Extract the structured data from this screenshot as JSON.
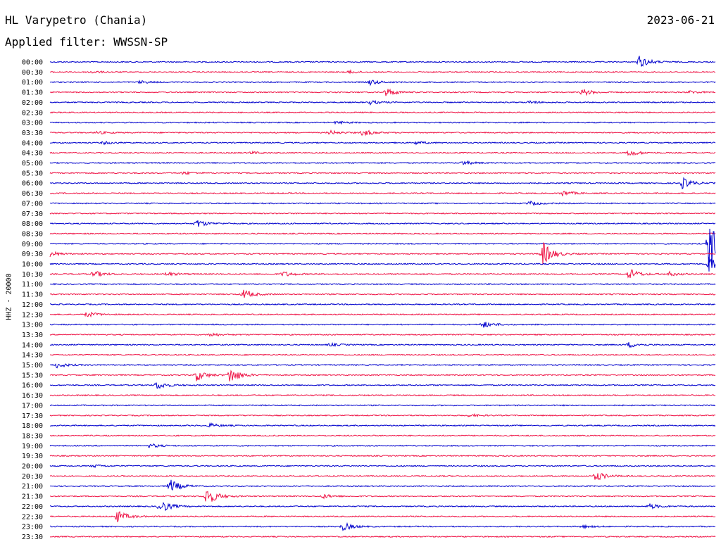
{
  "header": {
    "station": "HL Varypetro (Chania)",
    "date": "2023-06-21",
    "filter": "Applied filter: WWSSN-SP"
  },
  "chart_data": {
    "type": "line",
    "title": "HL Varypetro (Chania)",
    "subtitle": "Applied filter: WWSSN-SP",
    "ylabel": "HHZ - 20000",
    "colors": [
      "#0000cc",
      "#ee1144"
    ],
    "rows": [
      {
        "label": "00:00",
        "events": [
          [
            0.885,
            9
          ]
        ]
      },
      {
        "label": "00:30",
        "events": [
          [
            0.06,
            2
          ],
          [
            0.45,
            2
          ]
        ]
      },
      {
        "label": "01:00",
        "events": [
          [
            0.135,
            2
          ],
          [
            0.48,
            4
          ]
        ]
      },
      {
        "label": "01:30",
        "events": [
          [
            0.505,
            6
          ],
          [
            0.8,
            5
          ],
          [
            0.96,
            2
          ]
        ]
      },
      {
        "label": "02:00",
        "events": [
          [
            0.48,
            3
          ],
          [
            0.72,
            2
          ]
        ]
      },
      {
        "label": "02:30",
        "events": []
      },
      {
        "label": "03:00",
        "events": [
          [
            0.43,
            2
          ]
        ]
      },
      {
        "label": "03:30",
        "events": [
          [
            0.07,
            2
          ],
          [
            0.42,
            3
          ],
          [
            0.47,
            5
          ]
        ]
      },
      {
        "label": "04:00",
        "events": [
          [
            0.08,
            2
          ],
          [
            0.55,
            2
          ]
        ]
      },
      {
        "label": "04:30",
        "events": [
          [
            0.3,
            2
          ],
          [
            0.87,
            5
          ]
        ]
      },
      {
        "label": "05:00",
        "events": [
          [
            0.62,
            3
          ]
        ]
      },
      {
        "label": "05:30",
        "events": [
          [
            0.2,
            2
          ]
        ]
      },
      {
        "label": "06:00",
        "events": [
          [
            0.95,
            8
          ]
        ]
      },
      {
        "label": "06:30",
        "events": [
          [
            0.77,
            4
          ]
        ]
      },
      {
        "label": "07:00",
        "events": [
          [
            0.72,
            3
          ]
        ]
      },
      {
        "label": "07:30",
        "events": []
      },
      {
        "label": "08:00",
        "events": [
          [
            0.22,
            6
          ]
        ]
      },
      {
        "label": "08:30",
        "events": []
      },
      {
        "label": "09:00",
        "events": [
          [
            0.99,
            44
          ]
        ]
      },
      {
        "label": "09:30",
        "events": [
          [
            0.74,
            18
          ],
          [
            0.0,
            4
          ]
        ]
      },
      {
        "label": "10:00",
        "events": [
          [
            0.99,
            10
          ]
        ]
      },
      {
        "label": "10:30",
        "events": [
          [
            0.065,
            5
          ],
          [
            0.175,
            3
          ],
          [
            0.35,
            4
          ],
          [
            0.87,
            8
          ],
          [
            0.93,
            3
          ]
        ]
      },
      {
        "label": "11:00",
        "events": []
      },
      {
        "label": "11:30",
        "events": [
          [
            0.29,
            7
          ]
        ]
      },
      {
        "label": "12:00",
        "events": []
      },
      {
        "label": "12:30",
        "events": [
          [
            0.055,
            4
          ]
        ]
      },
      {
        "label": "13:00",
        "events": [
          [
            0.65,
            5
          ]
        ]
      },
      {
        "label": "13:30",
        "events": [
          [
            0.24,
            3
          ]
        ]
      },
      {
        "label": "14:00",
        "events": [
          [
            0.42,
            2
          ],
          [
            0.87,
            4
          ]
        ]
      },
      {
        "label": "14:30",
        "events": []
      },
      {
        "label": "15:00",
        "events": [
          [
            0.01,
            4
          ]
        ]
      },
      {
        "label": "15:30",
        "events": [
          [
            0.22,
            8
          ],
          [
            0.27,
            12
          ]
        ]
      },
      {
        "label": "16:00",
        "events": [
          [
            0.16,
            6
          ]
        ]
      },
      {
        "label": "16:30",
        "events": []
      },
      {
        "label": "17:00",
        "events": []
      },
      {
        "label": "17:30",
        "events": [
          [
            0.63,
            2
          ]
        ]
      },
      {
        "label": "18:00",
        "events": [
          [
            0.24,
            3
          ]
        ]
      },
      {
        "label": "18:30",
        "events": []
      },
      {
        "label": "19:00",
        "events": [
          [
            0.15,
            3
          ]
        ]
      },
      {
        "label": "19:30",
        "events": []
      },
      {
        "label": "20:00",
        "events": [
          [
            0.065,
            2
          ]
        ]
      },
      {
        "label": "20:30",
        "events": [
          [
            0.82,
            7
          ]
        ]
      },
      {
        "label": "21:00",
        "events": [
          [
            0.18,
            10
          ]
        ]
      },
      {
        "label": "21:30",
        "events": [
          [
            0.235,
            14
          ],
          [
            0.41,
            3
          ]
        ]
      },
      {
        "label": "22:00",
        "events": [
          [
            0.165,
            10
          ],
          [
            0.9,
            4
          ]
        ]
      },
      {
        "label": "22:30",
        "events": [
          [
            0.1,
            9
          ]
        ]
      },
      {
        "label": "23:00",
        "events": [
          [
            0.44,
            6
          ],
          [
            0.8,
            2
          ]
        ]
      },
      {
        "label": "23:30",
        "events": []
      }
    ]
  }
}
